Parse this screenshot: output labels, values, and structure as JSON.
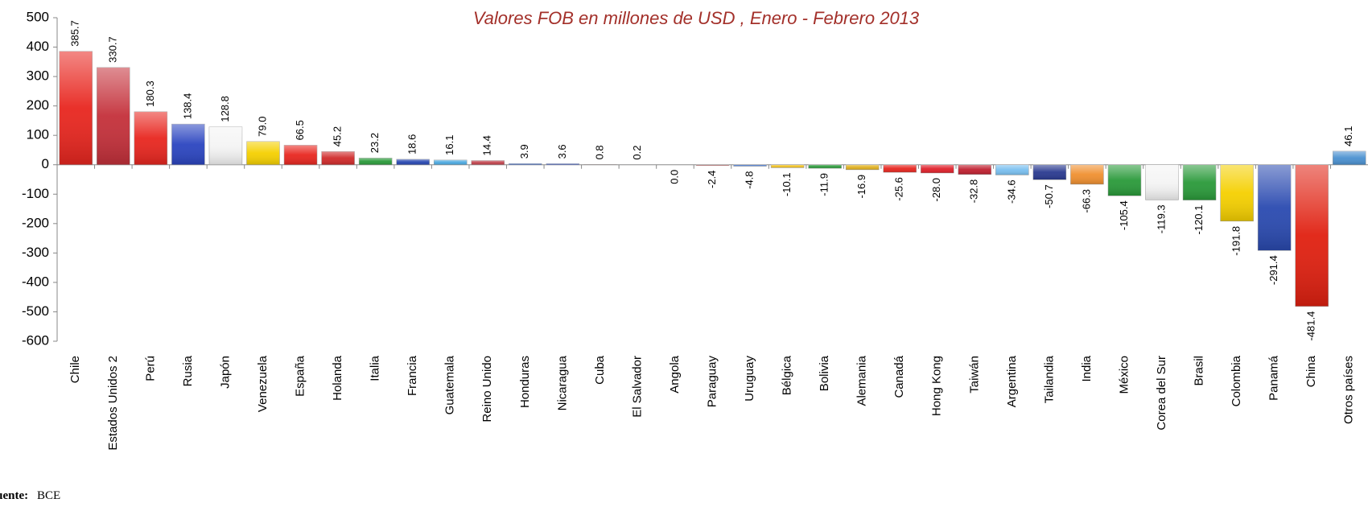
{
  "chart_data": {
    "type": "bar",
    "title": "Valores FOB en millones de USD , Enero - Febrero   2013",
    "source_label": "Fuente:",
    "source": "BCE",
    "categories": [
      "Chile",
      "Estados Unidos 2",
      "Perú",
      "Rusia",
      "Japón",
      "Venezuela",
      "España",
      "Holanda",
      "Italia",
      "Francia",
      "Guatemala",
      "Reino Unido",
      "Honduras",
      "Nicaragua",
      "Cuba",
      "El Salvador",
      "Angola",
      "Paraguay",
      "Uruguay",
      "Bélgica",
      "Bolivia",
      "Alemania",
      "Canadá",
      "Hong Kong",
      "Taiwán",
      "Argentina",
      "Tailandia",
      "India",
      "México",
      "Corea del Sur",
      "Brasil",
      "Colombia",
      "Panamá",
      "China",
      "Otros países"
    ],
    "values": [
      385.7,
      330.7,
      180.3,
      138.4,
      128.8,
      79.0,
      66.5,
      45.2,
      23.2,
      18.6,
      16.1,
      14.4,
      3.9,
      3.6,
      0.8,
      0.2,
      0.0,
      -2.4,
      -4.8,
      -10.1,
      -11.9,
      -16.9,
      -25.6,
      -28.0,
      -32.8,
      -34.6,
      -50.7,
      -66.3,
      -105.4,
      -119.3,
      -120.1,
      -191.8,
      -291.4,
      -481.4,
      46.1
    ],
    "value_labels": [
      "385.7",
      "330.7",
      "180.3",
      "138.4",
      "128.8",
      "79.0",
      "66.5",
      "45.2",
      "23.2",
      "18.6",
      "16.1",
      "14.4",
      "3.9",
      "3.6",
      "0.8",
      "0.2",
      "0.0",
      "-2.4",
      "-4.8",
      "-10.1",
      "-11.9",
      "-16.9",
      "-25.6",
      "-28.0",
      "-32.8",
      "-34.6",
      "-50.7",
      "-66.3",
      "-105.4",
      "-119.3",
      "-120.1",
      "-191.8",
      "-291.4",
      "-481.4",
      "46.1"
    ],
    "colors": [
      "#e8261f",
      "#c4303a",
      "#e8261f",
      "#2b45c0",
      "#f4f4f4",
      "#f5d000",
      "#e8261f",
      "#d02a2a",
      "#2a9a3a",
      "#2646b0",
      "#4aa8e0",
      "#c0404a",
      "#3a6ad0",
      "#3a5ad0",
      "#c03030",
      "#2a4aa0",
      "#d02020",
      "#d04040",
      "#4a7ad0",
      "#f0c020",
      "#2a9a3a",
      "#e0b020",
      "#e8261f",
      "#e0202a",
      "#c02030",
      "#7ac0f0",
      "#2a3a90",
      "#f09030",
      "#2a9a3a",
      "#f4f4f4",
      "#2a9a3a",
      "#f5d000",
      "#2a4ab0",
      "#e02010",
      "#4a90d0"
    ],
    "ylim": [
      -600,
      500
    ],
    "yticks": [
      -600,
      -500,
      -400,
      -300,
      -200,
      -100,
      0,
      100,
      200,
      300,
      400,
      500
    ]
  }
}
